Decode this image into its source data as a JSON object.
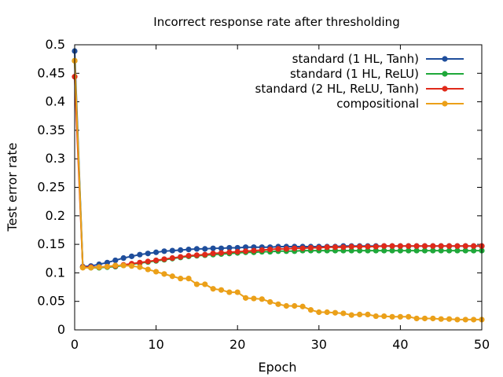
{
  "chart_data": {
    "type": "line",
    "title": "Incorrect response rate after thresholding",
    "xlabel": "Epoch",
    "ylabel": "Test error rate",
    "xlim": [
      0,
      50
    ],
    "ylim": [
      0,
      0.5
    ],
    "xticks": [
      0,
      10,
      20,
      30,
      40,
      50
    ],
    "xtick_labels": [
      "0",
      "10",
      "20",
      "30",
      "40",
      "50"
    ],
    "yticks": [
      0,
      0.05,
      0.1,
      0.15,
      0.2,
      0.25,
      0.3,
      0.35,
      0.4,
      0.45,
      0.5
    ],
    "ytick_labels": [
      "0",
      "0.05",
      "0.1",
      "0.15",
      "0.2",
      "0.25",
      "0.3",
      "0.35",
      "0.4",
      "0.45",
      "0.5"
    ],
    "grid": false,
    "legend_position": "top-right",
    "x": [
      0,
      1,
      2,
      3,
      4,
      5,
      6,
      7,
      8,
      9,
      10,
      11,
      12,
      13,
      14,
      15,
      16,
      17,
      18,
      19,
      20,
      21,
      22,
      23,
      24,
      25,
      26,
      27,
      28,
      29,
      30,
      31,
      32,
      33,
      34,
      35,
      36,
      37,
      38,
      39,
      40,
      41,
      42,
      43,
      44,
      45,
      46,
      47,
      48,
      49,
      50
    ],
    "series": [
      {
        "name": "standard (1 HL, Tanh)",
        "color": "#1f4e9c",
        "values": [
          0.489,
          0.111,
          0.112,
          0.115,
          0.118,
          0.122,
          0.126,
          0.129,
          0.132,
          0.134,
          0.136,
          0.138,
          0.139,
          0.14,
          0.141,
          0.142,
          0.142,
          0.143,
          0.143,
          0.144,
          0.144,
          0.145,
          0.145,
          0.145,
          0.145,
          0.146,
          0.146,
          0.146,
          0.146,
          0.146,
          0.146,
          0.146,
          0.146,
          0.147,
          0.147,
          0.147,
          0.147,
          0.147,
          0.147,
          0.147,
          0.147,
          0.147,
          0.147,
          0.147,
          0.147,
          0.147,
          0.147,
          0.147,
          0.147,
          0.147,
          0.147
        ]
      },
      {
        "name": "standard (1 HL, ReLU)",
        "color": "#1fa83a",
        "values": [
          0.472,
          0.11,
          0.109,
          0.109,
          0.11,
          0.111,
          0.113,
          0.115,
          0.117,
          0.119,
          0.121,
          0.123,
          0.125,
          0.127,
          0.129,
          0.13,
          0.131,
          0.132,
          0.133,
          0.134,
          0.135,
          0.136,
          0.136,
          0.137,
          0.137,
          0.138,
          0.138,
          0.138,
          0.139,
          0.139,
          0.139,
          0.139,
          0.139,
          0.139,
          0.139,
          0.139,
          0.139,
          0.139,
          0.139,
          0.139,
          0.139,
          0.139,
          0.139,
          0.139,
          0.139,
          0.139,
          0.139,
          0.139,
          0.139,
          0.139,
          0.139
        ]
      },
      {
        "name": "standard (2 HL, ReLU, Tanh)",
        "color": "#e02a1a",
        "values": [
          0.444,
          0.11,
          0.11,
          0.11,
          0.111,
          0.112,
          0.114,
          0.116,
          0.118,
          0.12,
          0.122,
          0.124,
          0.126,
          0.128,
          0.13,
          0.131,
          0.132,
          0.134,
          0.135,
          0.136,
          0.137,
          0.138,
          0.139,
          0.14,
          0.141,
          0.142,
          0.142,
          0.143,
          0.143,
          0.144,
          0.144,
          0.145,
          0.145,
          0.145,
          0.146,
          0.146,
          0.146,
          0.146,
          0.147,
          0.147,
          0.147,
          0.147,
          0.147,
          0.147,
          0.147,
          0.147,
          0.147,
          0.147,
          0.147,
          0.147,
          0.147
        ]
      },
      {
        "name": "compositional",
        "color": "#eba019",
        "values": [
          0.472,
          0.109,
          0.109,
          0.11,
          0.111,
          0.113,
          0.113,
          0.112,
          0.11,
          0.106,
          0.102,
          0.098,
          0.094,
          0.09,
          0.09,
          0.08,
          0.08,
          0.072,
          0.07,
          0.066,
          0.066,
          0.056,
          0.055,
          0.054,
          0.049,
          0.045,
          0.042,
          0.042,
          0.041,
          0.035,
          0.031,
          0.031,
          0.03,
          0.029,
          0.026,
          0.027,
          0.027,
          0.024,
          0.024,
          0.023,
          0.023,
          0.023,
          0.02,
          0.02,
          0.02,
          0.019,
          0.019,
          0.018,
          0.018,
          0.018,
          0.018
        ]
      }
    ]
  }
}
